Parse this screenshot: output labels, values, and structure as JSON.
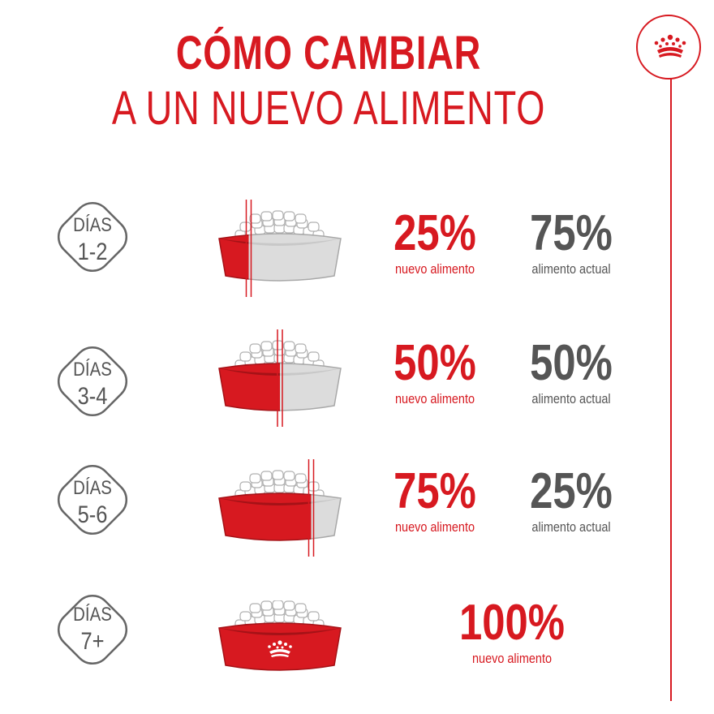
{
  "header": {
    "title_line1": "CÓMO CAMBIAR",
    "title_line2": "A UN NUEVO ALIMENTO"
  },
  "brand": {
    "logo_icon": "crown-icon",
    "accent_color": "#d71920",
    "text_grey": "#555555"
  },
  "steps": [
    {
      "days_label": "DÍAS",
      "days_range": "1-2",
      "new_pct": "25%",
      "new_label": "nuevo alimento",
      "current_pct": "75%",
      "current_label": "alimento actual",
      "new_fraction": 0.25
    },
    {
      "days_label": "DÍAS",
      "days_range": "3-4",
      "new_pct": "50%",
      "new_label": "nuevo alimento",
      "current_pct": "50%",
      "current_label": "alimento actual",
      "new_fraction": 0.5
    },
    {
      "days_label": "DÍAS",
      "days_range": "5-6",
      "new_pct": "75%",
      "new_label": "nuevo alimento",
      "current_pct": "25%",
      "current_label": "alimento actual",
      "new_fraction": 0.75
    },
    {
      "days_label": "DÍAS",
      "days_range": "7+",
      "new_pct": "100%",
      "new_label": "nuevo alimento",
      "new_fraction": 1.0
    }
  ]
}
